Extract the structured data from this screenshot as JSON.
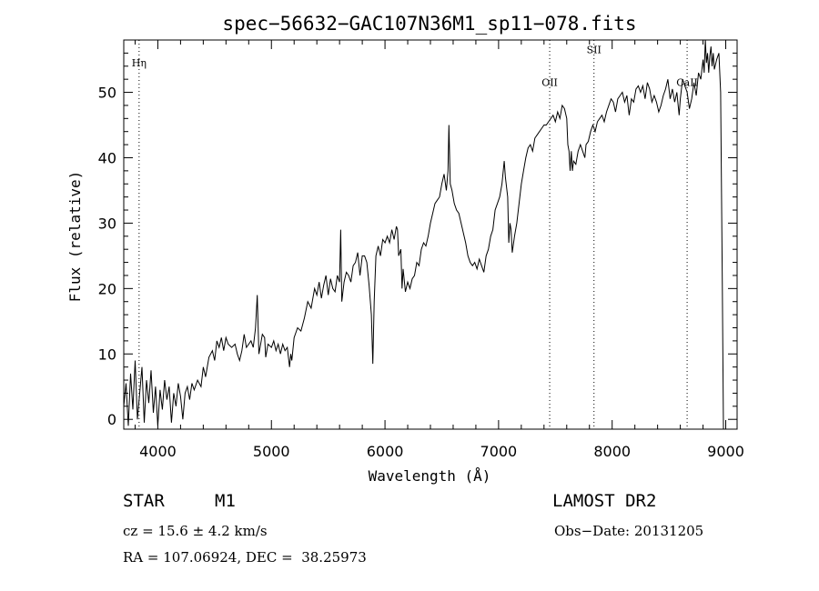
{
  "chart_data": {
    "type": "line",
    "title": "spec−56632−GAC107N36M1_sp11−078.fits",
    "xlabel": "Wavelength (Å)",
    "ylabel": "Flux (relative)",
    "xlim": [
      3700,
      9100
    ],
    "ylim": [
      -1.5,
      58
    ],
    "xticks": [
      4000,
      5000,
      6000,
      7000,
      8000,
      9000
    ],
    "yticks": [
      0,
      10,
      20,
      30,
      40,
      50
    ],
    "grid": false,
    "series": [
      {
        "values": [
          [
            3700,
            2
          ],
          [
            3720,
            5.5
          ],
          [
            3740,
            -1
          ],
          [
            3760,
            7
          ],
          [
            3780,
            1.5
          ],
          [
            3800,
            9
          ],
          [
            3820,
            0
          ],
          [
            3840,
            4
          ],
          [
            3860,
            8
          ],
          [
            3880,
            -0.5
          ],
          [
            3900,
            6
          ],
          [
            3920,
            2.5
          ],
          [
            3940,
            7.5
          ],
          [
            3960,
            1
          ],
          [
            3980,
            5
          ],
          [
            4000,
            -1
          ],
          [
            4020,
            4.5
          ],
          [
            4040,
            1.5
          ],
          [
            4060,
            6
          ],
          [
            4080,
            3
          ],
          [
            4100,
            5
          ],
          [
            4120,
            -0.5
          ],
          [
            4140,
            4
          ],
          [
            4160,
            2
          ],
          [
            4180,
            5.5
          ],
          [
            4200,
            3.5
          ],
          [
            4220,
            0
          ],
          [
            4240,
            4
          ],
          [
            4260,
            5
          ],
          [
            4280,
            3
          ],
          [
            4300,
            5.5
          ],
          [
            4320,
            4.5
          ],
          [
            4350,
            6
          ],
          [
            4380,
            5
          ],
          [
            4400,
            8
          ],
          [
            4420,
            6.5
          ],
          [
            4450,
            9.5
          ],
          [
            4480,
            10.5
          ],
          [
            4500,
            9
          ],
          [
            4520,
            12
          ],
          [
            4540,
            11
          ],
          [
            4560,
            12.5
          ],
          [
            4580,
            10.5
          ],
          [
            4600,
            12.5
          ],
          [
            4620,
            11.5
          ],
          [
            4650,
            11
          ],
          [
            4680,
            11.5
          ],
          [
            4700,
            10
          ],
          [
            4720,
            9
          ],
          [
            4740,
            10.5
          ],
          [
            4760,
            13
          ],
          [
            4780,
            11
          ],
          [
            4800,
            11.5
          ],
          [
            4820,
            12
          ],
          [
            4840,
            11
          ],
          [
            4860,
            14
          ],
          [
            4875,
            19
          ],
          [
            4890,
            10
          ],
          [
            4900,
            11
          ],
          [
            4920,
            13
          ],
          [
            4940,
            12.5
          ],
          [
            4950,
            9.5
          ],
          [
            4970,
            11.5
          ],
          [
            5000,
            11
          ],
          [
            5020,
            12
          ],
          [
            5040,
            10.5
          ],
          [
            5060,
            11.5
          ],
          [
            5080,
            10
          ],
          [
            5100,
            11.5
          ],
          [
            5120,
            10.5
          ],
          [
            5140,
            11
          ],
          [
            5160,
            8
          ],
          [
            5170,
            10
          ],
          [
            5180,
            9
          ],
          [
            5200,
            12.5
          ],
          [
            5230,
            14
          ],
          [
            5260,
            13.5
          ],
          [
            5290,
            15.5
          ],
          [
            5320,
            18
          ],
          [
            5350,
            17
          ],
          [
            5380,
            20
          ],
          [
            5400,
            19
          ],
          [
            5420,
            21
          ],
          [
            5440,
            18.5
          ],
          [
            5460,
            20.5
          ],
          [
            5480,
            22
          ],
          [
            5500,
            19
          ],
          [
            5520,
            21.5
          ],
          [
            5540,
            20
          ],
          [
            5560,
            19.5
          ],
          [
            5580,
            22
          ],
          [
            5600,
            21
          ],
          [
            5610,
            29
          ],
          [
            5620,
            18
          ],
          [
            5640,
            21
          ],
          [
            5660,
            22.5
          ],
          [
            5680,
            22
          ],
          [
            5700,
            21
          ],
          [
            5720,
            23.5
          ],
          [
            5740,
            24
          ],
          [
            5760,
            25.5
          ],
          [
            5780,
            22
          ],
          [
            5800,
            25
          ],
          [
            5820,
            25
          ],
          [
            5840,
            24
          ],
          [
            5860,
            20.5
          ],
          [
            5880,
            16
          ],
          [
            5893,
            8.5
          ],
          [
            5905,
            18
          ],
          [
            5920,
            25
          ],
          [
            5940,
            26.5
          ],
          [
            5960,
            25
          ],
          [
            5980,
            27.5
          ],
          [
            6000,
            27
          ],
          [
            6020,
            28
          ],
          [
            6040,
            27
          ],
          [
            6060,
            29
          ],
          [
            6080,
            27.5
          ],
          [
            6100,
            29.5
          ],
          [
            6110,
            29
          ],
          [
            6120,
            25
          ],
          [
            6140,
            26
          ],
          [
            6150,
            20
          ],
          [
            6160,
            23
          ],
          [
            6180,
            19.5
          ],
          [
            6200,
            21
          ],
          [
            6220,
            20
          ],
          [
            6240,
            21.5
          ],
          [
            6260,
            22
          ],
          [
            6280,
            24
          ],
          [
            6300,
            23.5
          ],
          [
            6320,
            26
          ],
          [
            6340,
            27
          ],
          [
            6360,
            26.5
          ],
          [
            6380,
            28
          ],
          [
            6400,
            30
          ],
          [
            6420,
            31.5
          ],
          [
            6440,
            33
          ],
          [
            6460,
            33.5
          ],
          [
            6480,
            34
          ],
          [
            6500,
            36
          ],
          [
            6520,
            37.5
          ],
          [
            6540,
            35
          ],
          [
            6555,
            38
          ],
          [
            6563,
            45
          ],
          [
            6575,
            36
          ],
          [
            6590,
            35
          ],
          [
            6610,
            33
          ],
          [
            6630,
            32
          ],
          [
            6650,
            31.5
          ],
          [
            6670,
            30
          ],
          [
            6690,
            28.5
          ],
          [
            6710,
            27
          ],
          [
            6730,
            25
          ],
          [
            6750,
            24
          ],
          [
            6770,
            23.5
          ],
          [
            6790,
            24
          ],
          [
            6810,
            23
          ],
          [
            6830,
            24.5
          ],
          [
            6850,
            23.5
          ],
          [
            6870,
            22.5
          ],
          [
            6890,
            25
          ],
          [
            6910,
            26
          ],
          [
            6930,
            28
          ],
          [
            6950,
            29
          ],
          [
            6970,
            32
          ],
          [
            6990,
            33
          ],
          [
            7010,
            34
          ],
          [
            7030,
            36
          ],
          [
            7050,
            39.5
          ],
          [
            7060,
            37
          ],
          [
            7080,
            34
          ],
          [
            7090,
            27
          ],
          [
            7100,
            30
          ],
          [
            7110,
            29
          ],
          [
            7120,
            25.5
          ],
          [
            7140,
            28
          ],
          [
            7160,
            30
          ],
          [
            7180,
            33
          ],
          [
            7200,
            36
          ],
          [
            7220,
            38
          ],
          [
            7240,
            40
          ],
          [
            7260,
            41.5
          ],
          [
            7280,
            42
          ],
          [
            7300,
            41
          ],
          [
            7320,
            43
          ],
          [
            7340,
            43.5
          ],
          [
            7360,
            44
          ],
          [
            7380,
            44.5
          ],
          [
            7400,
            45
          ],
          [
            7420,
            45
          ],
          [
            7440,
            45.5
          ],
          [
            7460,
            46
          ],
          [
            7480,
            46.5
          ],
          [
            7500,
            45.5
          ],
          [
            7520,
            47
          ],
          [
            7540,
            46
          ],
          [
            7560,
            48
          ],
          [
            7580,
            47.5
          ],
          [
            7600,
            46
          ],
          [
            7610,
            42
          ],
          [
            7620,
            41
          ],
          [
            7630,
            38
          ],
          [
            7640,
            41
          ],
          [
            7650,
            38
          ],
          [
            7660,
            39.5
          ],
          [
            7680,
            39
          ],
          [
            7700,
            41
          ],
          [
            7720,
            42
          ],
          [
            7740,
            41
          ],
          [
            7760,
            40
          ],
          [
            7770,
            42
          ],
          [
            7790,
            42.5
          ],
          [
            7810,
            44
          ],
          [
            7830,
            45
          ],
          [
            7850,
            44
          ],
          [
            7870,
            45.5
          ],
          [
            7890,
            46
          ],
          [
            7910,
            46.5
          ],
          [
            7930,
            45.5
          ],
          [
            7950,
            47
          ],
          [
            7970,
            48
          ],
          [
            7990,
            49
          ],
          [
            8010,
            48.5
          ],
          [
            8030,
            47
          ],
          [
            8050,
            49
          ],
          [
            8070,
            49.5
          ],
          [
            8090,
            50
          ],
          [
            8110,
            48.5
          ],
          [
            8130,
            49.5
          ],
          [
            8150,
            46.5
          ],
          [
            8170,
            49
          ],
          [
            8190,
            48.5
          ],
          [
            8210,
            50.5
          ],
          [
            8230,
            51
          ],
          [
            8250,
            50
          ],
          [
            8270,
            51
          ],
          [
            8290,
            49
          ],
          [
            8310,
            51.5
          ],
          [
            8330,
            50.5
          ],
          [
            8350,
            48.5
          ],
          [
            8370,
            49.5
          ],
          [
            8390,
            48.5
          ],
          [
            8410,
            47
          ],
          [
            8430,
            48
          ],
          [
            8450,
            49.5
          ],
          [
            8470,
            50.5
          ],
          [
            8490,
            52
          ],
          [
            8510,
            49
          ],
          [
            8530,
            50.5
          ],
          [
            8550,
            48.5
          ],
          [
            8570,
            50
          ],
          [
            8590,
            46.5
          ],
          [
            8600,
            49
          ],
          [
            8620,
            52
          ],
          [
            8640,
            51
          ],
          [
            8660,
            50
          ],
          [
            8680,
            47.5
          ],
          [
            8700,
            49
          ],
          [
            8720,
            51.5
          ],
          [
            8740,
            49.5
          ],
          [
            8760,
            53
          ],
          [
            8780,
            52
          ],
          [
            8800,
            55
          ],
          [
            8810,
            53
          ],
          [
            8820,
            58
          ],
          [
            8830,
            54.5
          ],
          [
            8840,
            56
          ],
          [
            8850,
            53
          ],
          [
            8860,
            55.5
          ],
          [
            8870,
            57
          ],
          [
            8880,
            54
          ],
          [
            8890,
            56
          ],
          [
            8900,
            53.5
          ],
          [
            8920,
            55
          ],
          [
            8940,
            56
          ],
          [
            8955,
            50
          ],
          [
            8970,
            20
          ],
          [
            8980,
            -1.5
          ]
        ]
      }
    ],
    "annotations": [
      {
        "label": "Hη",
        "x": 3835,
        "y": 54
      },
      {
        "label": "OII",
        "x": 7450,
        "y": 51
      },
      {
        "label": "SII",
        "x": 7840,
        "y": 56
      },
      {
        "label": "CaII",
        "x": 8660,
        "y": 51
      }
    ]
  },
  "info": {
    "object_class": "STAR",
    "subclass": "M1",
    "survey": "LAMOST DR2",
    "cz": "cz = 15.6 ± 4.2 km/s",
    "obs_date": "Obs−Date: 20131205",
    "coords": "RA = 107.06924, DEC =  38.25973"
  }
}
